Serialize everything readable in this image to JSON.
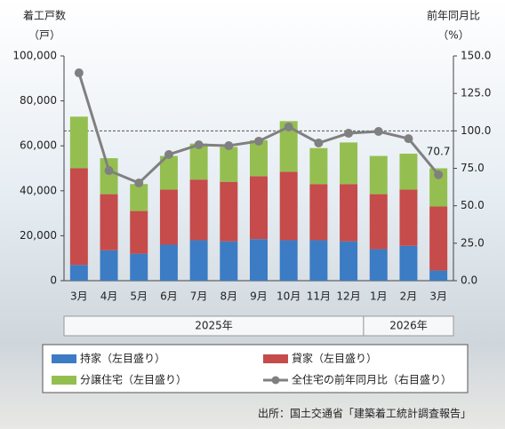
{
  "chart_data": {
    "type": "stacked-bar-line",
    "y_label": [
      "着工戸数",
      "（戸）"
    ],
    "y2_label": [
      "前年同月比",
      "（%）"
    ],
    "categories": [
      "3月",
      "4月",
      "5月",
      "6月",
      "7月",
      "8月",
      "9月",
      "10月",
      "11月",
      "12月",
      "1月",
      "2月",
      "3月"
    ],
    "groups": [
      {
        "label": "2025年",
        "span": [
          0,
          9
        ]
      },
      {
        "label": "2026年",
        "span": [
          10,
          12
        ]
      }
    ],
    "series": [
      {
        "name": "持家（左目盛り）",
        "color": "#3b7cc4",
        "values": [
          7000,
          13500,
          12000,
          16000,
          18000,
          17500,
          18500,
          18000,
          18000,
          17500,
          14000,
          15500,
          4500
        ]
      },
      {
        "name": "貸家（左目盛り）",
        "color": "#c64b4b",
        "values": [
          43000,
          25000,
          19000,
          24500,
          27000,
          26500,
          28000,
          30500,
          25000,
          25500,
          24500,
          25000,
          28500
        ]
      },
      {
        "name": "分譲住宅（左目盛り）",
        "color": "#94bf50",
        "values": [
          23000,
          16000,
          12000,
          15000,
          16000,
          15500,
          16000,
          22500,
          16000,
          18500,
          17000,
          16000,
          17000
        ]
      },
      {
        "name": "全住宅の前年同月比（右目盛り）",
        "color": "#808080",
        "axis": "y2",
        "values": [
          138.7,
          73.5,
          65.2,
          84.2,
          90.7,
          90.1,
          93.1,
          102.6,
          91.9,
          98.4,
          99.6,
          94.8,
          70.7
        ]
      }
    ],
    "data_labels": "last",
    "ylim": [
      0,
      100000
    ],
    "yticks": [
      0,
      {
        "value": 20000,
        "label": "20,000"
      },
      {
        "value": 40000,
        "label": "40,000"
      },
      {
        "value": 60000,
        "label": "60,000"
      },
      {
        "value": 80000,
        "label": "80,000"
      },
      {
        "value": 100000,
        "label": "100,000"
      }
    ],
    "y2lim": [
      0,
      150
    ],
    "y2ticks": [
      {
        "value": 0,
        "label": "0.0"
      },
      {
        "value": 25,
        "label": "25.0"
      },
      {
        "value": 50,
        "label": "50.0"
      },
      {
        "value": 75,
        "label": "75.0"
      },
      {
        "value": 100,
        "label": "100.0"
      },
      {
        "value": 125,
        "label": "125.0"
      },
      {
        "value": 150,
        "label": "150.0"
      }
    ],
    "y2_reference": 100,
    "source": "出所：国土交通省「建築着工統計調査報告」"
  }
}
